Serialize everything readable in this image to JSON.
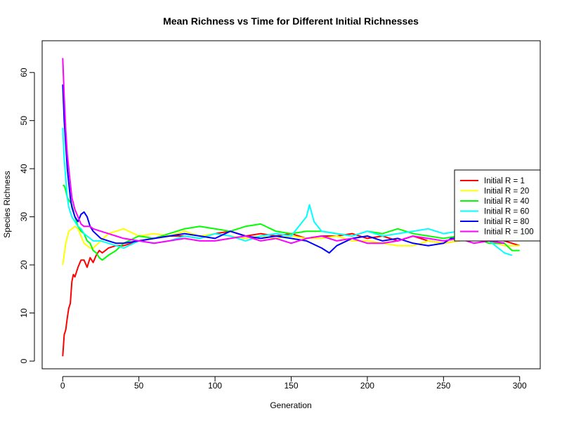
{
  "chart_data": {
    "type": "line",
    "title": "Mean Richness vs Time for Different Initial Richnesses",
    "xlabel": "Generation",
    "ylabel": "Species Richness",
    "xlim": [
      0,
      300
    ],
    "ylim": [
      0,
      65
    ],
    "xticks": [
      0,
      50,
      100,
      150,
      200,
      250,
      300
    ],
    "yticks": [
      0,
      10,
      20,
      30,
      40,
      50,
      60
    ],
    "grid": false,
    "legend_position": "right",
    "series": [
      {
        "name": "Initial R = 1",
        "color": "#FF0000",
        "x": [
          0,
          1,
          2,
          3,
          4,
          5,
          6,
          7,
          8,
          10,
          12,
          14,
          16,
          18,
          20,
          22,
          24,
          26,
          28,
          30,
          35,
          40,
          50,
          60,
          70,
          80,
          90,
          100,
          110,
          120,
          130,
          140,
          150,
          160,
          170,
          180,
          190,
          200,
          210,
          220,
          230,
          240,
          250,
          260,
          270,
          280,
          290,
          300
        ],
        "y": [
          1,
          5.5,
          6.5,
          9,
          11,
          12,
          16.5,
          18,
          17.5,
          19.5,
          21,
          21,
          19.5,
          21.5,
          20.5,
          22,
          23,
          22.5,
          23,
          23.5,
          24,
          24,
          25,
          25.5,
          26,
          26,
          25.5,
          26.5,
          27,
          26,
          26.5,
          26,
          26.5,
          25.5,
          26,
          26,
          26.5,
          25.5,
          26,
          25,
          26,
          25,
          24.5,
          25,
          25.5,
          26,
          25,
          24
        ]
      },
      {
        "name": "Initial R = 20",
        "color": "#FFFF00",
        "x": [
          0,
          2,
          4,
          6,
          8,
          10,
          12,
          14,
          16,
          18,
          20,
          25,
          30,
          35,
          40,
          50,
          60,
          70,
          80,
          90,
          100,
          110,
          120,
          130,
          140,
          150,
          160,
          170,
          180,
          190,
          200,
          210,
          220,
          230,
          240,
          250,
          260,
          270,
          280,
          290,
          300
        ],
        "y": [
          20,
          24.5,
          27,
          27.5,
          28,
          27.5,
          26,
          24.5,
          24,
          23.5,
          23.5,
          25,
          26.5,
          27,
          27.5,
          26,
          26.5,
          26,
          27,
          26,
          26.5,
          26,
          25.5,
          26,
          25.5,
          26,
          25.5,
          25.5,
          26,
          25,
          25,
          24.5,
          24,
          24,
          25,
          24.5,
          25,
          25.5,
          25,
          24,
          24
        ]
      },
      {
        "name": "Initial R = 40",
        "color": "#00FF00",
        "x": [
          0,
          1,
          2,
          3,
          4,
          6,
          8,
          10,
          12,
          14,
          16,
          18,
          20,
          22,
          24,
          26,
          28,
          30,
          35,
          40,
          50,
          60,
          70,
          80,
          90,
          100,
          110,
          120,
          130,
          140,
          150,
          160,
          170,
          180,
          190,
          200,
          210,
          220,
          230,
          240,
          250,
          260,
          270,
          280,
          290,
          295,
          300
        ],
        "y": [
          36.5,
          36.5,
          35.5,
          34,
          33.5,
          32.5,
          30,
          28,
          27,
          26.5,
          25,
          24.5,
          23,
          22.5,
          21.5,
          21,
          21.5,
          22,
          23,
          24.5,
          26,
          25.5,
          26.5,
          27.5,
          28,
          27.5,
          27,
          28,
          28.5,
          27,
          26.5,
          27,
          27,
          26.5,
          26,
          27,
          26.5,
          27.5,
          26.5,
          26,
          25.5,
          26,
          25.5,
          24.5,
          24.5,
          23,
          23
        ]
      },
      {
        "name": "Initial R = 60",
        "color": "#00FFFF",
        "x": [
          0,
          1,
          2,
          3,
          4,
          6,
          8,
          10,
          12,
          14,
          16,
          18,
          20,
          25,
          30,
          35,
          40,
          50,
          60,
          70,
          80,
          90,
          100,
          110,
          120,
          130,
          140,
          150,
          155,
          160,
          162,
          165,
          170,
          180,
          190,
          200,
          210,
          220,
          230,
          240,
          250,
          260,
          270,
          280,
          290,
          295
        ],
        "y": [
          48.5,
          42,
          38,
          34,
          32,
          30,
          29,
          28,
          27.5,
          26.5,
          26,
          25.5,
          25,
          25,
          24.5,
          24,
          23.5,
          25,
          24.5,
          25,
          26,
          25.5,
          26.5,
          26,
          25,
          26,
          26.5,
          26,
          28,
          30,
          32.5,
          29,
          27,
          26.5,
          26,
          27,
          26,
          26.5,
          27,
          27.5,
          26.5,
          27,
          25.5,
          25,
          22.5,
          22
        ]
      },
      {
        "name": "Initial R = 80",
        "color": "#0000FF",
        "x": [
          0,
          1,
          2,
          3,
          4,
          5,
          6,
          8,
          10,
          12,
          14,
          16,
          18,
          20,
          25,
          30,
          35,
          40,
          50,
          60,
          70,
          80,
          90,
          100,
          110,
          120,
          130,
          140,
          150,
          160,
          170,
          175,
          180,
          190,
          200,
          210,
          220,
          230,
          240,
          250,
          255,
          260,
          270,
          280,
          290
        ],
        "y": [
          57.5,
          50,
          45,
          40,
          37,
          34,
          32,
          30,
          29,
          30.5,
          31,
          30,
          28,
          27,
          25.5,
          25,
          24.5,
          24.5,
          25,
          25.5,
          26,
          26.5,
          26,
          25.5,
          27,
          26,
          25.5,
          26,
          25.5,
          25,
          23.5,
          22.5,
          24,
          25.5,
          26,
          25,
          25.5,
          24.5,
          24,
          24.5,
          25.5,
          25.5,
          26,
          25,
          24.5
        ]
      },
      {
        "name": "Initial R = 100",
        "color": "#FF00FF",
        "x": [
          0,
          1,
          2,
          3,
          4,
          5,
          6,
          8,
          10,
          12,
          14,
          16,
          18,
          20,
          25,
          30,
          35,
          40,
          50,
          60,
          70,
          80,
          90,
          100,
          110,
          120,
          130,
          140,
          150,
          160,
          170,
          180,
          190,
          200,
          210,
          220,
          230,
          240,
          250,
          260,
          270,
          280,
          290
        ],
        "y": [
          63,
          55,
          48,
          43,
          40,
          37,
          34,
          31.5,
          30,
          28.5,
          28,
          28,
          28,
          27.5,
          27,
          26.5,
          26,
          25.5,
          25,
          24.5,
          25,
          25.5,
          25,
          25,
          25.5,
          26,
          25,
          25.5,
          24.5,
          25.5,
          26,
          25,
          25.5,
          24.5,
          24.5,
          25,
          26,
          25.5,
          25,
          25.5,
          24.5,
          25,
          24.5
        ]
      }
    ]
  }
}
